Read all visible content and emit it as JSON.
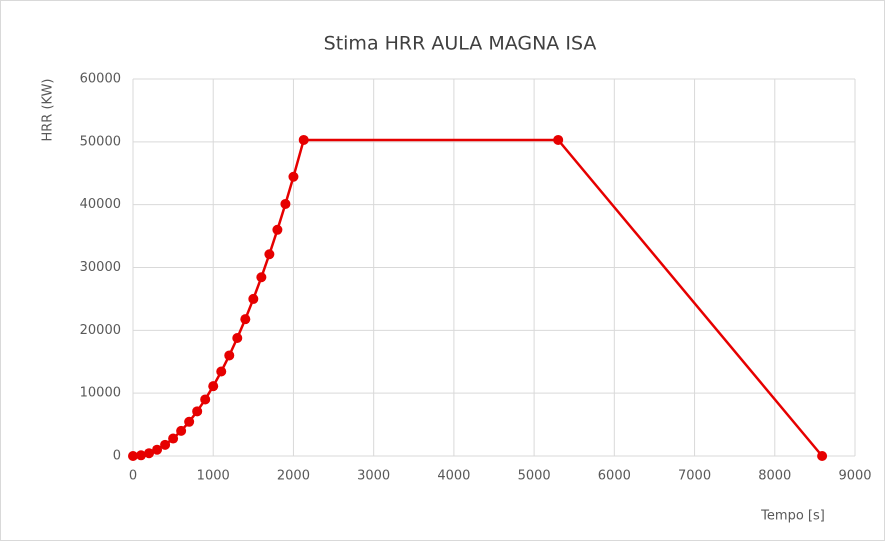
{
  "chart_data": {
    "type": "scatter-line",
    "title": "Stima HRR AULA MAGNA ISA",
    "x_label": "Tempo [s]",
    "y_label": "HRR (KW)",
    "series": [
      {
        "name": "HRR",
        "color": "#e60000",
        "x": [
          0,
          100,
          200,
          300,
          400,
          500,
          600,
          700,
          800,
          900,
          1000,
          1100,
          1200,
          1300,
          1400,
          1500,
          1600,
          1700,
          1800,
          1900,
          2000,
          2128,
          5300,
          8590
        ],
        "values": [
          0,
          111,
          444,
          1000,
          1778,
          2778,
          4000,
          5444,
          7111,
          9000,
          11111,
          13444,
          16000,
          18778,
          21778,
          25000,
          28444,
          32111,
          36000,
          40111,
          44444,
          50300,
          50300,
          0
        ]
      }
    ],
    "xlim": [
      0,
      9000
    ],
    "xticks": [
      0,
      1000,
      2000,
      3000,
      4000,
      5000,
      6000,
      7000,
      8000,
      9000
    ],
    "ylim": [
      0,
      60000
    ],
    "yticks": [
      0,
      10000,
      20000,
      30000,
      40000,
      50000,
      60000
    ],
    "grid": true
  }
}
